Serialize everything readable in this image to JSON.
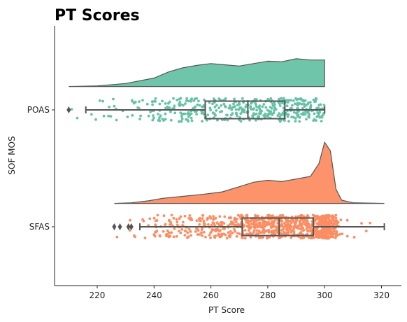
{
  "chart_data": {
    "type": "raincloud",
    "title": "PT Scores",
    "xlabel": "PT Score",
    "ylabel": "SOF MOS",
    "xlim": [
      205,
      327
    ],
    "xticks": [
      220,
      240,
      260,
      280,
      300,
      320
    ],
    "grid": false,
    "categories": [
      "POAS",
      "SFAS"
    ],
    "series": [
      {
        "name": "POAS",
        "color": "#66c2a5",
        "box": {
          "whisker_low": 216,
          "q1": 258,
          "median": 273,
          "q3": 286,
          "whisker_high": 300
        },
        "outliers": [
          210
        ],
        "scatter_range": [
          210,
          300
        ],
        "density": [
          [
            210,
            0
          ],
          [
            220,
            0.01
          ],
          [
            230,
            0.05
          ],
          [
            240,
            0.14
          ],
          [
            245,
            0.24
          ],
          [
            250,
            0.31
          ],
          [
            255,
            0.35
          ],
          [
            260,
            0.38
          ],
          [
            265,
            0.36
          ],
          [
            270,
            0.34
          ],
          [
            275,
            0.38
          ],
          [
            280,
            0.42
          ],
          [
            285,
            0.41
          ],
          [
            290,
            0.46
          ],
          [
            295,
            0.44
          ],
          [
            300,
            0.44
          ]
        ]
      },
      {
        "name": "SFAS",
        "color": "#fc8d62",
        "box": {
          "whisker_low": 235,
          "q1": 271,
          "median": 284,
          "q3": 296,
          "whisker_high": 321
        },
        "outliers": [
          226,
          228,
          231,
          232
        ],
        "scatter_range": [
          226,
          321
        ],
        "density": [
          [
            226,
            0
          ],
          [
            232,
            0.01
          ],
          [
            238,
            0.04
          ],
          [
            243,
            0.08
          ],
          [
            250,
            0.11
          ],
          [
            257,
            0.14
          ],
          [
            264,
            0.18
          ],
          [
            270,
            0.26
          ],
          [
            275,
            0.33
          ],
          [
            280,
            0.36
          ],
          [
            285,
            0.34
          ],
          [
            290,
            0.38
          ],
          [
            295,
            0.42
          ],
          [
            298,
            0.62
          ],
          [
            300,
            0.95
          ],
          [
            302,
            0.82
          ],
          [
            304,
            0.22
          ],
          [
            306,
            0.05
          ],
          [
            310,
            0.01
          ],
          [
            321,
            0
          ]
        ]
      }
    ]
  }
}
